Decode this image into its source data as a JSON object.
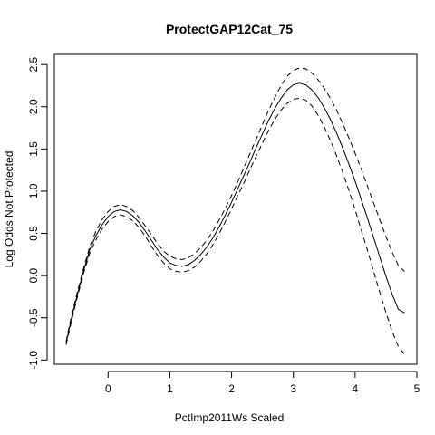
{
  "chart_data": {
    "type": "line",
    "title": "ProtectGAP12Cat_75",
    "xlabel": "PctImp2011Ws Scaled",
    "ylabel": "Log Odds Not Protected",
    "xlim": [
      -0.87,
      5.0
    ],
    "ylim": [
      -1.05,
      2.62
    ],
    "x_ticks": [
      0,
      1,
      2,
      3,
      4,
      5
    ],
    "x_tick_labels": [
      "0",
      "1",
      "2",
      "3",
      "4",
      "5"
    ],
    "y_ticks": [
      -1.0,
      -0.5,
      0.0,
      0.5,
      1.0,
      1.5,
      2.0,
      2.5
    ],
    "y_tick_labels": [
      "-1.0",
      "-0.5",
      "0.0",
      "0.5",
      "1.0",
      "1.5",
      "2.0",
      "2.5"
    ],
    "grid": false,
    "legend": "none",
    "series": [
      {
        "style": "solid",
        "x": [
          -0.68,
          -0.6,
          -0.5,
          -0.4,
          -0.3,
          -0.2,
          -0.1,
          0.0,
          0.1,
          0.2,
          0.3,
          0.4,
          0.5,
          0.6,
          0.7,
          0.8,
          0.9,
          1.0,
          1.1,
          1.2,
          1.3,
          1.4,
          1.5,
          1.6,
          1.7,
          1.8,
          1.9,
          2.0,
          2.1,
          2.2,
          2.3,
          2.4,
          2.5,
          2.6,
          2.7,
          2.8,
          2.9,
          3.0,
          3.1,
          3.2,
          3.3,
          3.4,
          3.5,
          3.6,
          3.7,
          3.8,
          3.9,
          4.0,
          4.1,
          4.2,
          4.3,
          4.4,
          4.5,
          4.6,
          4.7,
          4.8
        ],
        "y": [
          -0.8,
          -0.53,
          -0.23,
          0.05,
          0.3,
          0.47,
          0.6,
          0.7,
          0.76,
          0.78,
          0.76,
          0.71,
          0.63,
          0.53,
          0.42,
          0.31,
          0.22,
          0.15,
          0.12,
          0.11,
          0.13,
          0.18,
          0.25,
          0.34,
          0.45,
          0.58,
          0.72,
          0.87,
          1.03,
          1.19,
          1.35,
          1.52,
          1.68,
          1.84,
          1.98,
          2.1,
          2.2,
          2.26,
          2.28,
          2.26,
          2.2,
          2.11,
          1.99,
          1.85,
          1.69,
          1.51,
          1.32,
          1.12,
          0.9,
          0.68,
          0.45,
          0.22,
          -0.01,
          -0.22,
          -0.4,
          -0.44
        ]
      },
      {
        "style": "dashed",
        "x": [
          -0.68,
          -0.6,
          -0.5,
          -0.4,
          -0.3,
          -0.2,
          -0.1,
          0.0,
          0.1,
          0.2,
          0.3,
          0.4,
          0.5,
          0.6,
          0.7,
          0.8,
          0.9,
          1.0,
          1.1,
          1.2,
          1.3,
          1.4,
          1.5,
          1.6,
          1.7,
          1.8,
          1.9,
          2.0,
          2.1,
          2.2,
          2.3,
          2.4,
          2.5,
          2.6,
          2.7,
          2.8,
          2.9,
          3.0,
          3.1,
          3.2,
          3.3,
          3.4,
          3.5,
          3.6,
          3.7,
          3.8,
          3.9,
          4.0,
          4.1,
          4.2,
          4.3,
          4.4,
          4.5,
          4.6,
          4.7,
          4.8
        ],
        "y": [
          -0.78,
          -0.5,
          -0.2,
          0.08,
          0.34,
          0.52,
          0.66,
          0.76,
          0.82,
          0.84,
          0.82,
          0.77,
          0.69,
          0.59,
          0.49,
          0.38,
          0.29,
          0.23,
          0.2,
          0.19,
          0.21,
          0.26,
          0.33,
          0.42,
          0.53,
          0.66,
          0.8,
          0.95,
          1.11,
          1.28,
          1.45,
          1.62,
          1.79,
          1.96,
          2.11,
          2.25,
          2.36,
          2.43,
          2.46,
          2.45,
          2.4,
          2.32,
          2.22,
          2.1,
          1.96,
          1.8,
          1.63,
          1.45,
          1.26,
          1.06,
          0.86,
          0.66,
          0.46,
          0.28,
          0.12,
          0.05
        ]
      },
      {
        "style": "dashed",
        "x": [
          -0.68,
          -0.6,
          -0.5,
          -0.4,
          -0.3,
          -0.2,
          -0.1,
          0.0,
          0.1,
          0.2,
          0.3,
          0.4,
          0.5,
          0.6,
          0.7,
          0.8,
          0.9,
          1.0,
          1.1,
          1.2,
          1.3,
          1.4,
          1.5,
          1.6,
          1.7,
          1.8,
          1.9,
          2.0,
          2.1,
          2.2,
          2.3,
          2.4,
          2.5,
          2.6,
          2.7,
          2.8,
          2.9,
          3.0,
          3.1,
          3.2,
          3.3,
          3.4,
          3.5,
          3.6,
          3.7,
          3.8,
          3.9,
          4.0,
          4.1,
          4.2,
          4.3,
          4.4,
          4.5,
          4.6,
          4.7,
          4.8
        ],
        "y": [
          -0.82,
          -0.56,
          -0.26,
          0.02,
          0.26,
          0.42,
          0.55,
          0.64,
          0.7,
          0.72,
          0.7,
          0.65,
          0.57,
          0.47,
          0.35,
          0.24,
          0.15,
          0.08,
          0.05,
          0.04,
          0.06,
          0.1,
          0.17,
          0.26,
          0.37,
          0.5,
          0.64,
          0.79,
          0.95,
          1.1,
          1.26,
          1.42,
          1.57,
          1.72,
          1.85,
          1.96,
          2.04,
          2.09,
          2.1,
          2.08,
          2.01,
          1.9,
          1.76,
          1.6,
          1.42,
          1.22,
          1.01,
          0.78,
          0.54,
          0.3,
          0.05,
          -0.2,
          -0.44,
          -0.66,
          -0.84,
          -0.93
        ]
      }
    ]
  }
}
